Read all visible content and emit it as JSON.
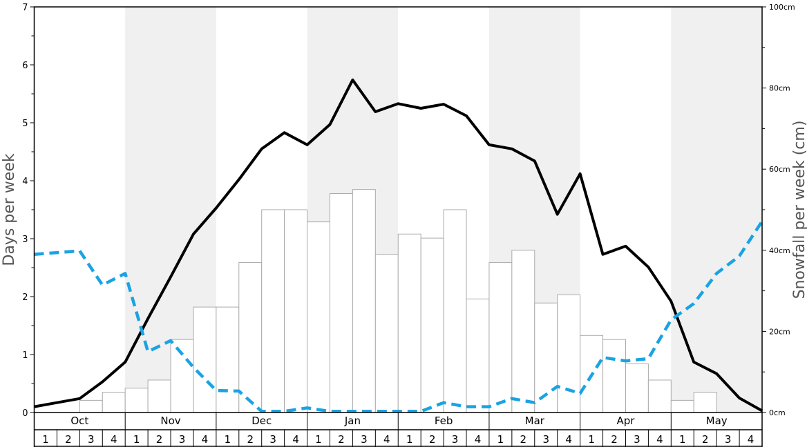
{
  "chart_data": {
    "type": "bar",
    "left_axis": {
      "label": "Days per week",
      "ylim": [
        0,
        7
      ],
      "ticks": [
        "0",
        "1",
        "2",
        "3",
        "4",
        "5",
        "6",
        "7"
      ]
    },
    "right_axis": {
      "label": "Snowfall per week (cm)",
      "ylim": [
        0,
        100
      ],
      "ticks": [
        "0cm",
        "20cm",
        "40cm",
        "60cm",
        "80cm",
        "100cm"
      ]
    },
    "months": [
      "Oct",
      "Nov",
      "Dec",
      "Jan",
      "Feb",
      "Mar",
      "Apr",
      "May"
    ],
    "week_labels": [
      "1",
      "2",
      "3",
      "4"
    ],
    "alternating_shading": true,
    "shade_color": "#f0f0f0",
    "bar_color": "#ffffff",
    "bar_edge_color": "#aaaaaa",
    "snowfall_bars_cm": [
      0,
      0,
      3,
      5,
      6,
      8,
      18,
      26,
      26,
      37,
      50,
      50,
      47,
      54,
      55,
      39,
      44,
      43,
      50,
      28,
      37,
      40,
      27,
      29,
      19,
      18,
      12,
      8,
      3,
      5,
      0,
      0
    ],
    "series": [
      {
        "name": "",
        "axis": "left",
        "style": "solid",
        "color": "#000000",
        "values": [
          0.1,
          0.17,
          0.24,
          0.53,
          0.87,
          1.62,
          2.34,
          3.08,
          3.53,
          4.02,
          4.55,
          4.83,
          4.62,
          4.97,
          5.74,
          5.19,
          5.33,
          5.25,
          5.32,
          5.12,
          4.62,
          4.55,
          4.34,
          3.42,
          4.12,
          2.73,
          2.87,
          2.51,
          1.92,
          0.87,
          0.67,
          0.25
        ]
      },
      {
        "name": "",
        "axis": "left",
        "style": "dashed",
        "color": "#1aa3e3",
        "values": [
          2.73,
          2.76,
          2.79,
          2.2,
          2.4,
          1.05,
          1.24,
          0.78,
          0.38,
          0.37,
          0.02,
          0.02,
          0.08,
          0.02,
          0.02,
          0.02,
          0.02,
          0.02,
          0.17,
          0.1,
          0.1,
          0.24,
          0.17,
          0.45,
          0.33,
          0.95,
          0.89,
          0.93,
          1.6,
          1.88,
          2.4,
          2.7
        ]
      }
    ],
    "line_end_values": [
      0.03,
      3.3
    ]
  }
}
